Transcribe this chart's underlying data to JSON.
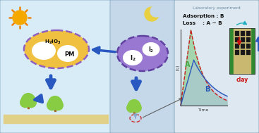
{
  "fig_width": 3.67,
  "fig_height": 1.89,
  "dpi": 100,
  "panel1_bg": "#d8ecf8",
  "panel2_bg": "#c5d8ea",
  "panel3_bg": "#dde8f0",
  "panel3_border": "#90b0c8",
  "sun_body": "#f5a800",
  "sun_ray": "#f08000",
  "moon_body": "#e8d040",
  "moon_bite": "#c5d8ea",
  "ellipse1_fill": "#f0c040",
  "ellipse1_edge": "#9060c0",
  "ellipse2_fill": "#9878d0",
  "ellipse2_edge": "#6040a0",
  "blob_fill": "#ffffff",
  "arrow_blue": "#2858c0",
  "tree_top": "#88cc44",
  "tree_trunk": "#a06828",
  "ground_fill": "#e0d088",
  "curve_green_fill": "#88cc88",
  "curve_blue": "#2858b8",
  "curve_red_dashed": "#cc2020",
  "curve_blue_fill": "#b0c0e8",
  "clay_outer": "#181818",
  "clay_green_strip": "#308830",
  "clay_inner_bg": "#c8b870",
  "clay_grid_cell": "#101010",
  "clay_label_color": "#cc1010",
  "lab_border_color": "#88aac0",
  "lab_label_color": "#7090a8",
  "axis_color": "#404040",
  "text_black": "#101010",
  "adsorption_text": "Adsorption : B",
  "loss_text": "Loss    : A − B",
  "time_label": "Time",
  "clay_label": "clay",
  "ylabel_text": "[I₂]",
  "panel3_label": "Laboratory experiment",
  "A_label_color": "#44aa44",
  "B_label_color": "#2858b8"
}
